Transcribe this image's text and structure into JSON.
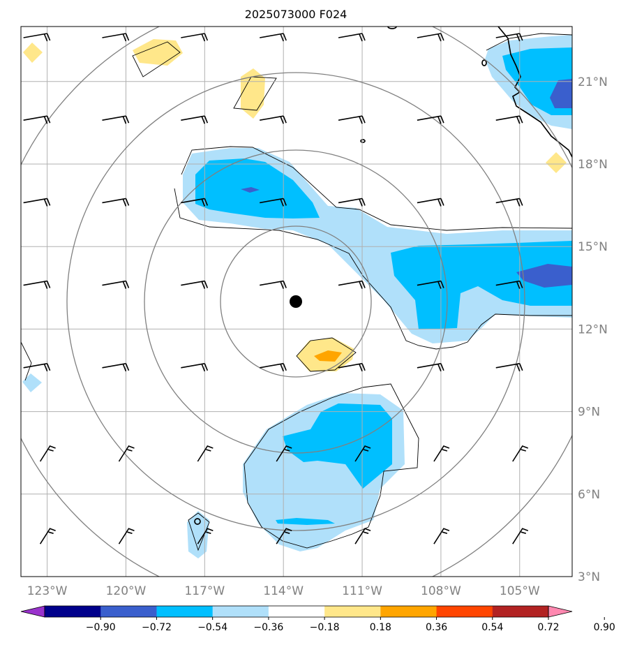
{
  "title": "2025073000 F024",
  "map": {
    "lon_range": [
      -124,
      -103
    ],
    "lat_range": [
      3,
      23
    ],
    "center": {
      "lon": -113.5,
      "lat": 13
    },
    "lon_ticks": [
      {
        "value": -123,
        "label": "123°W"
      },
      {
        "value": -120,
        "label": "120°W"
      },
      {
        "value": -117,
        "label": "117°W"
      },
      {
        "value": -114,
        "label": "114°W"
      },
      {
        "value": -111,
        "label": "111°W"
      },
      {
        "value": -108,
        "label": "108°W"
      },
      {
        "value": -105,
        "label": "105°W"
      }
    ],
    "lat_ticks": [
      {
        "value": 21,
        "label": "21°N"
      },
      {
        "value": 18,
        "label": "18°N"
      },
      {
        "value": 15,
        "label": "15°N"
      },
      {
        "value": 12,
        "label": "12°N"
      },
      {
        "value": 9,
        "label": "9°N"
      },
      {
        "value": 6,
        "label": "6°N"
      },
      {
        "value": 3,
        "label": "3°N"
      }
    ],
    "gridlines": true,
    "range_rings": "concentric gray rings around the storm center"
  },
  "colorbar": {
    "ticks": [
      "−0.90",
      "−0.72",
      "−0.54",
      "−0.36",
      "−0.18",
      "0.18",
      "0.36",
      "0.54",
      "0.72",
      "0.90"
    ],
    "colors": [
      "#9932cc",
      "#00008b",
      "#3a5fcd",
      "#00bfff",
      "#b0e0fa",
      "#ffffff",
      "#ffe78a",
      "#ffa500",
      "#ff4500",
      "#b22222",
      "#ff88b0"
    ],
    "extend": "both"
  },
  "colors": {
    "frame": "#000000",
    "grid": "#b0b0b0",
    "ring": "#808080",
    "coast": "#000000",
    "barb": "#000000",
    "storm_center": "#000000"
  }
}
